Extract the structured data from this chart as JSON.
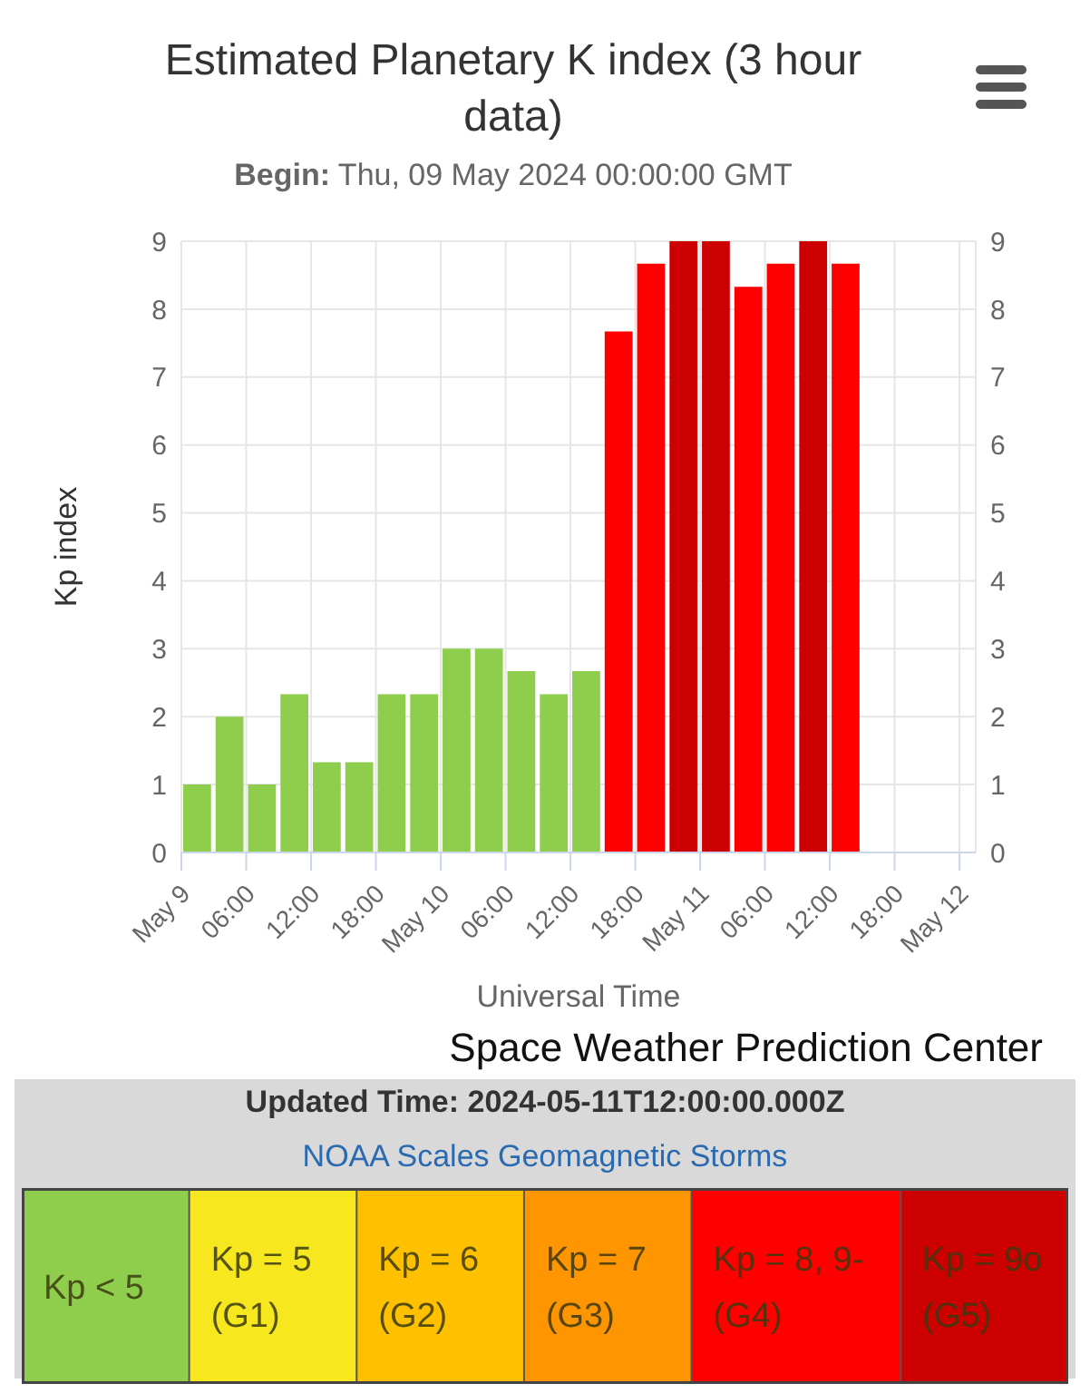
{
  "chart_data": {
    "type": "bar",
    "title": "Estimated Planetary K index (3 hour data)",
    "subtitle": "Begin: Thu, 09 May 2024 00:00:00 GMT",
    "xlabel": "Universal Time",
    "ylabel": "Kp index",
    "annotations": [
      "Space Weather Prediction Center",
      "Updated Time: 2024-05-11T12:00:00.000Z",
      "NOAA Scales Geomagnetic Storms",
      "Kp < 5",
      "Kp = 5 (G1)",
      "Kp = 6 (G2)",
      "Kp = 7 (G3)",
      "Kp = 8, 9- (G4)",
      "Kp = 9o (G5)"
    ],
    "x": [
      "2024-05-09T01:30",
      "2024-05-09T04:30",
      "2024-05-09T07:30",
      "2024-05-09T10:30",
      "2024-05-09T13:30",
      "2024-05-09T16:30",
      "2024-05-09T19:30",
      "2024-05-09T22:30",
      "2024-05-10T01:30",
      "2024-05-10T04:30",
      "2024-05-10T07:30",
      "2024-05-10T10:30",
      "2024-05-10T13:30",
      "2024-05-10T16:30",
      "2024-05-10T19:30",
      "2024-05-10T22:30",
      "2024-05-11T01:30",
      "2024-05-11T04:30",
      "2024-05-11T07:30",
      "2024-05-11T10:30",
      "2024-05-11T13:30"
    ],
    "values": [
      1,
      2,
      1,
      2.33,
      1.33,
      1.33,
      2.33,
      2.33,
      3,
      3,
      2.67,
      2.33,
      2.67,
      7.67,
      8.67,
      9,
      9,
      8.33,
      8.67,
      9,
      8.67
    ],
    "colors": [
      "#8fce4c",
      "#8fce4c",
      "#8fce4c",
      "#8fce4c",
      "#8fce4c",
      "#8fce4c",
      "#8fce4c",
      "#8fce4c",
      "#8fce4c",
      "#8fce4c",
      "#8fce4c",
      "#8fce4c",
      "#8fce4c",
      "#ff0000",
      "#ff0000",
      "#cc0000",
      "#cc0000",
      "#ff0000",
      "#ff0000",
      "#cc0000",
      "#ff0000"
    ],
    "xlim": [
      "2024-05-09T00:00",
      "2024-05-12T01:30"
    ],
    "xticks": [
      {
        "value": "2024-05-09T00:00",
        "label": "May 9"
      },
      {
        "value": "2024-05-09T06:00",
        "label": "06:00"
      },
      {
        "value": "2024-05-09T12:00",
        "label": "12:00"
      },
      {
        "value": "2024-05-09T18:00",
        "label": "18:00"
      },
      {
        "value": "2024-05-10T00:00",
        "label": "May 10"
      },
      {
        "value": "2024-05-10T06:00",
        "label": "06:00"
      },
      {
        "value": "2024-05-10T12:00",
        "label": "12:00"
      },
      {
        "value": "2024-05-10T18:00",
        "label": "18:00"
      },
      {
        "value": "2024-05-11T00:00",
        "label": "May 11"
      },
      {
        "value": "2024-05-11T06:00",
        "label": "06:00"
      },
      {
        "value": "2024-05-11T12:00",
        "label": "12:00"
      },
      {
        "value": "2024-05-11T18:00",
        "label": "18:00"
      },
      {
        "value": "2024-05-12T00:00",
        "label": "May 12"
      }
    ],
    "ylim": [
      0,
      9
    ],
    "yticks": [
      0,
      1,
      2,
      3,
      4,
      5,
      6,
      7,
      8,
      9
    ],
    "y2lim": [
      0,
      9
    ],
    "y2ticks": [
      0,
      1,
      2,
      3,
      4,
      5,
      6,
      7,
      8,
      9
    ],
    "grid": true
  }
}
